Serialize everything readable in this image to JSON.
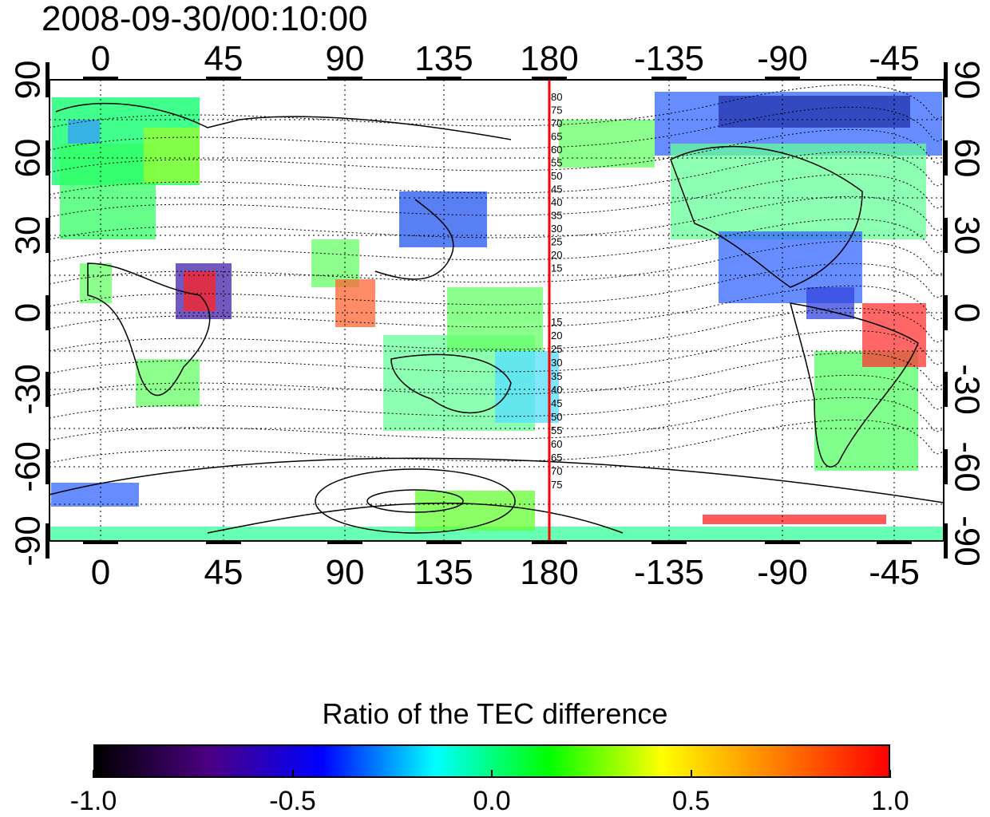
{
  "title": "2008-09-30/00:10:00",
  "map": {
    "top_lon_labels": [
      "0",
      "45",
      "90",
      "135",
      "180",
      "-135",
      "-90",
      "-45"
    ],
    "bottom_lon_labels": [
      "0",
      "45",
      "90",
      "135",
      "180",
      "-135",
      "-90",
      "-45"
    ],
    "left_lat_labels": [
      "90",
      "60",
      "30",
      "0",
      "-30",
      "-60",
      "-90"
    ],
    "right_lat_labels": [
      "90",
      "60",
      "30",
      "0",
      "-30",
      "-60",
      "-90"
    ],
    "contour_labels_north": [
      "80",
      "75",
      "70",
      "65",
      "60",
      "55",
      "50",
      "45",
      "40",
      "35",
      "30",
      "25",
      "20",
      "15"
    ],
    "contour_labels_south": [
      "15",
      "20",
      "25",
      "30",
      "35",
      "40",
      "45",
      "50",
      "55",
      "60",
      "65",
      "70",
      "75"
    ],
    "terminator_color": "#ff0000"
  },
  "colorbar": {
    "title": "Ratio of the TEC difference",
    "ticks": [
      "-1.0",
      "-0.5",
      "0.0",
      "0.5",
      "1.0"
    ],
    "colors": [
      "#000000",
      "#4b0082",
      "#0000ff",
      "#00ffff",
      "#00ff00",
      "#ffff00",
      "#ff8000",
      "#ff0000"
    ]
  }
}
